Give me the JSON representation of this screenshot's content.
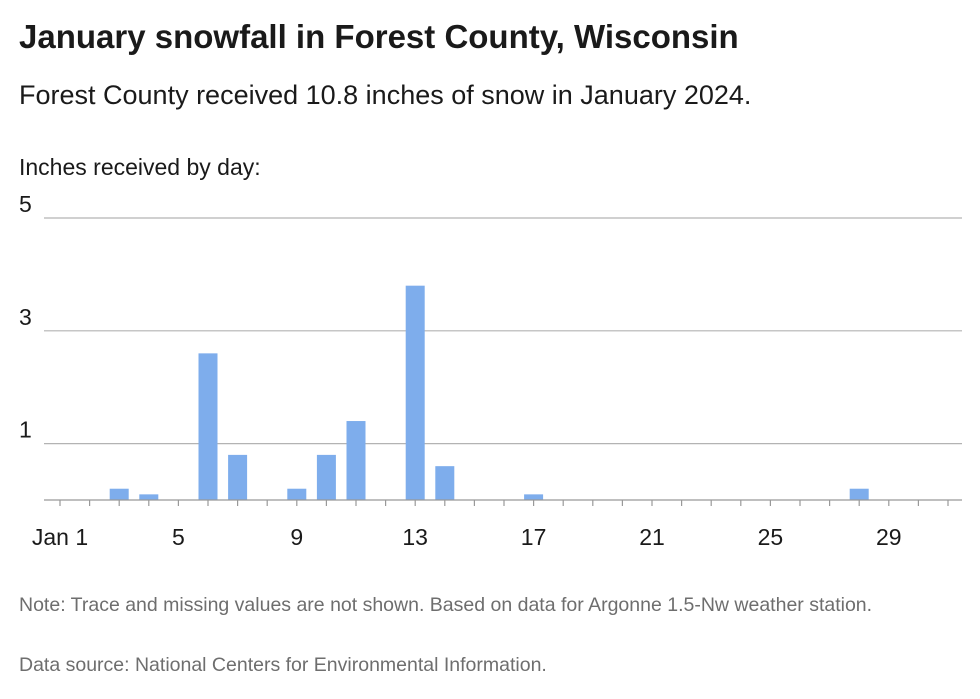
{
  "header": {
    "title": "January snowfall in Forest County, Wisconsin",
    "subtitle": "Forest County received 10.8 inches of snow in January 2024."
  },
  "chart_data": {
    "type": "bar",
    "ylabel": "Inches received by day:",
    "x": [
      3,
      4,
      6,
      7,
      9,
      10,
      11,
      13,
      14,
      17,
      28
    ],
    "values": [
      0.2,
      0.1,
      2.6,
      0.8,
      0.2,
      0.8,
      1.4,
      3.8,
      0.6,
      0.1,
      0.2
    ],
    "xlim": [
      1,
      31
    ],
    "ylim": [
      0,
      5
    ],
    "yticks": [
      1,
      3,
      5
    ],
    "xticks": [
      1,
      5,
      9,
      13,
      17,
      21,
      25,
      29
    ],
    "xtick_labels": [
      "Jan 1",
      "5",
      "9",
      "13",
      "17",
      "21",
      "25",
      "29"
    ],
    "grid": true,
    "bar_color": "#7eadec"
  },
  "footer": {
    "note": "Note: Trace and missing values are not shown. Based on data for Argonne 1.5-Nw weather station.",
    "source": "Data source: National Centers for Environmental Information."
  }
}
